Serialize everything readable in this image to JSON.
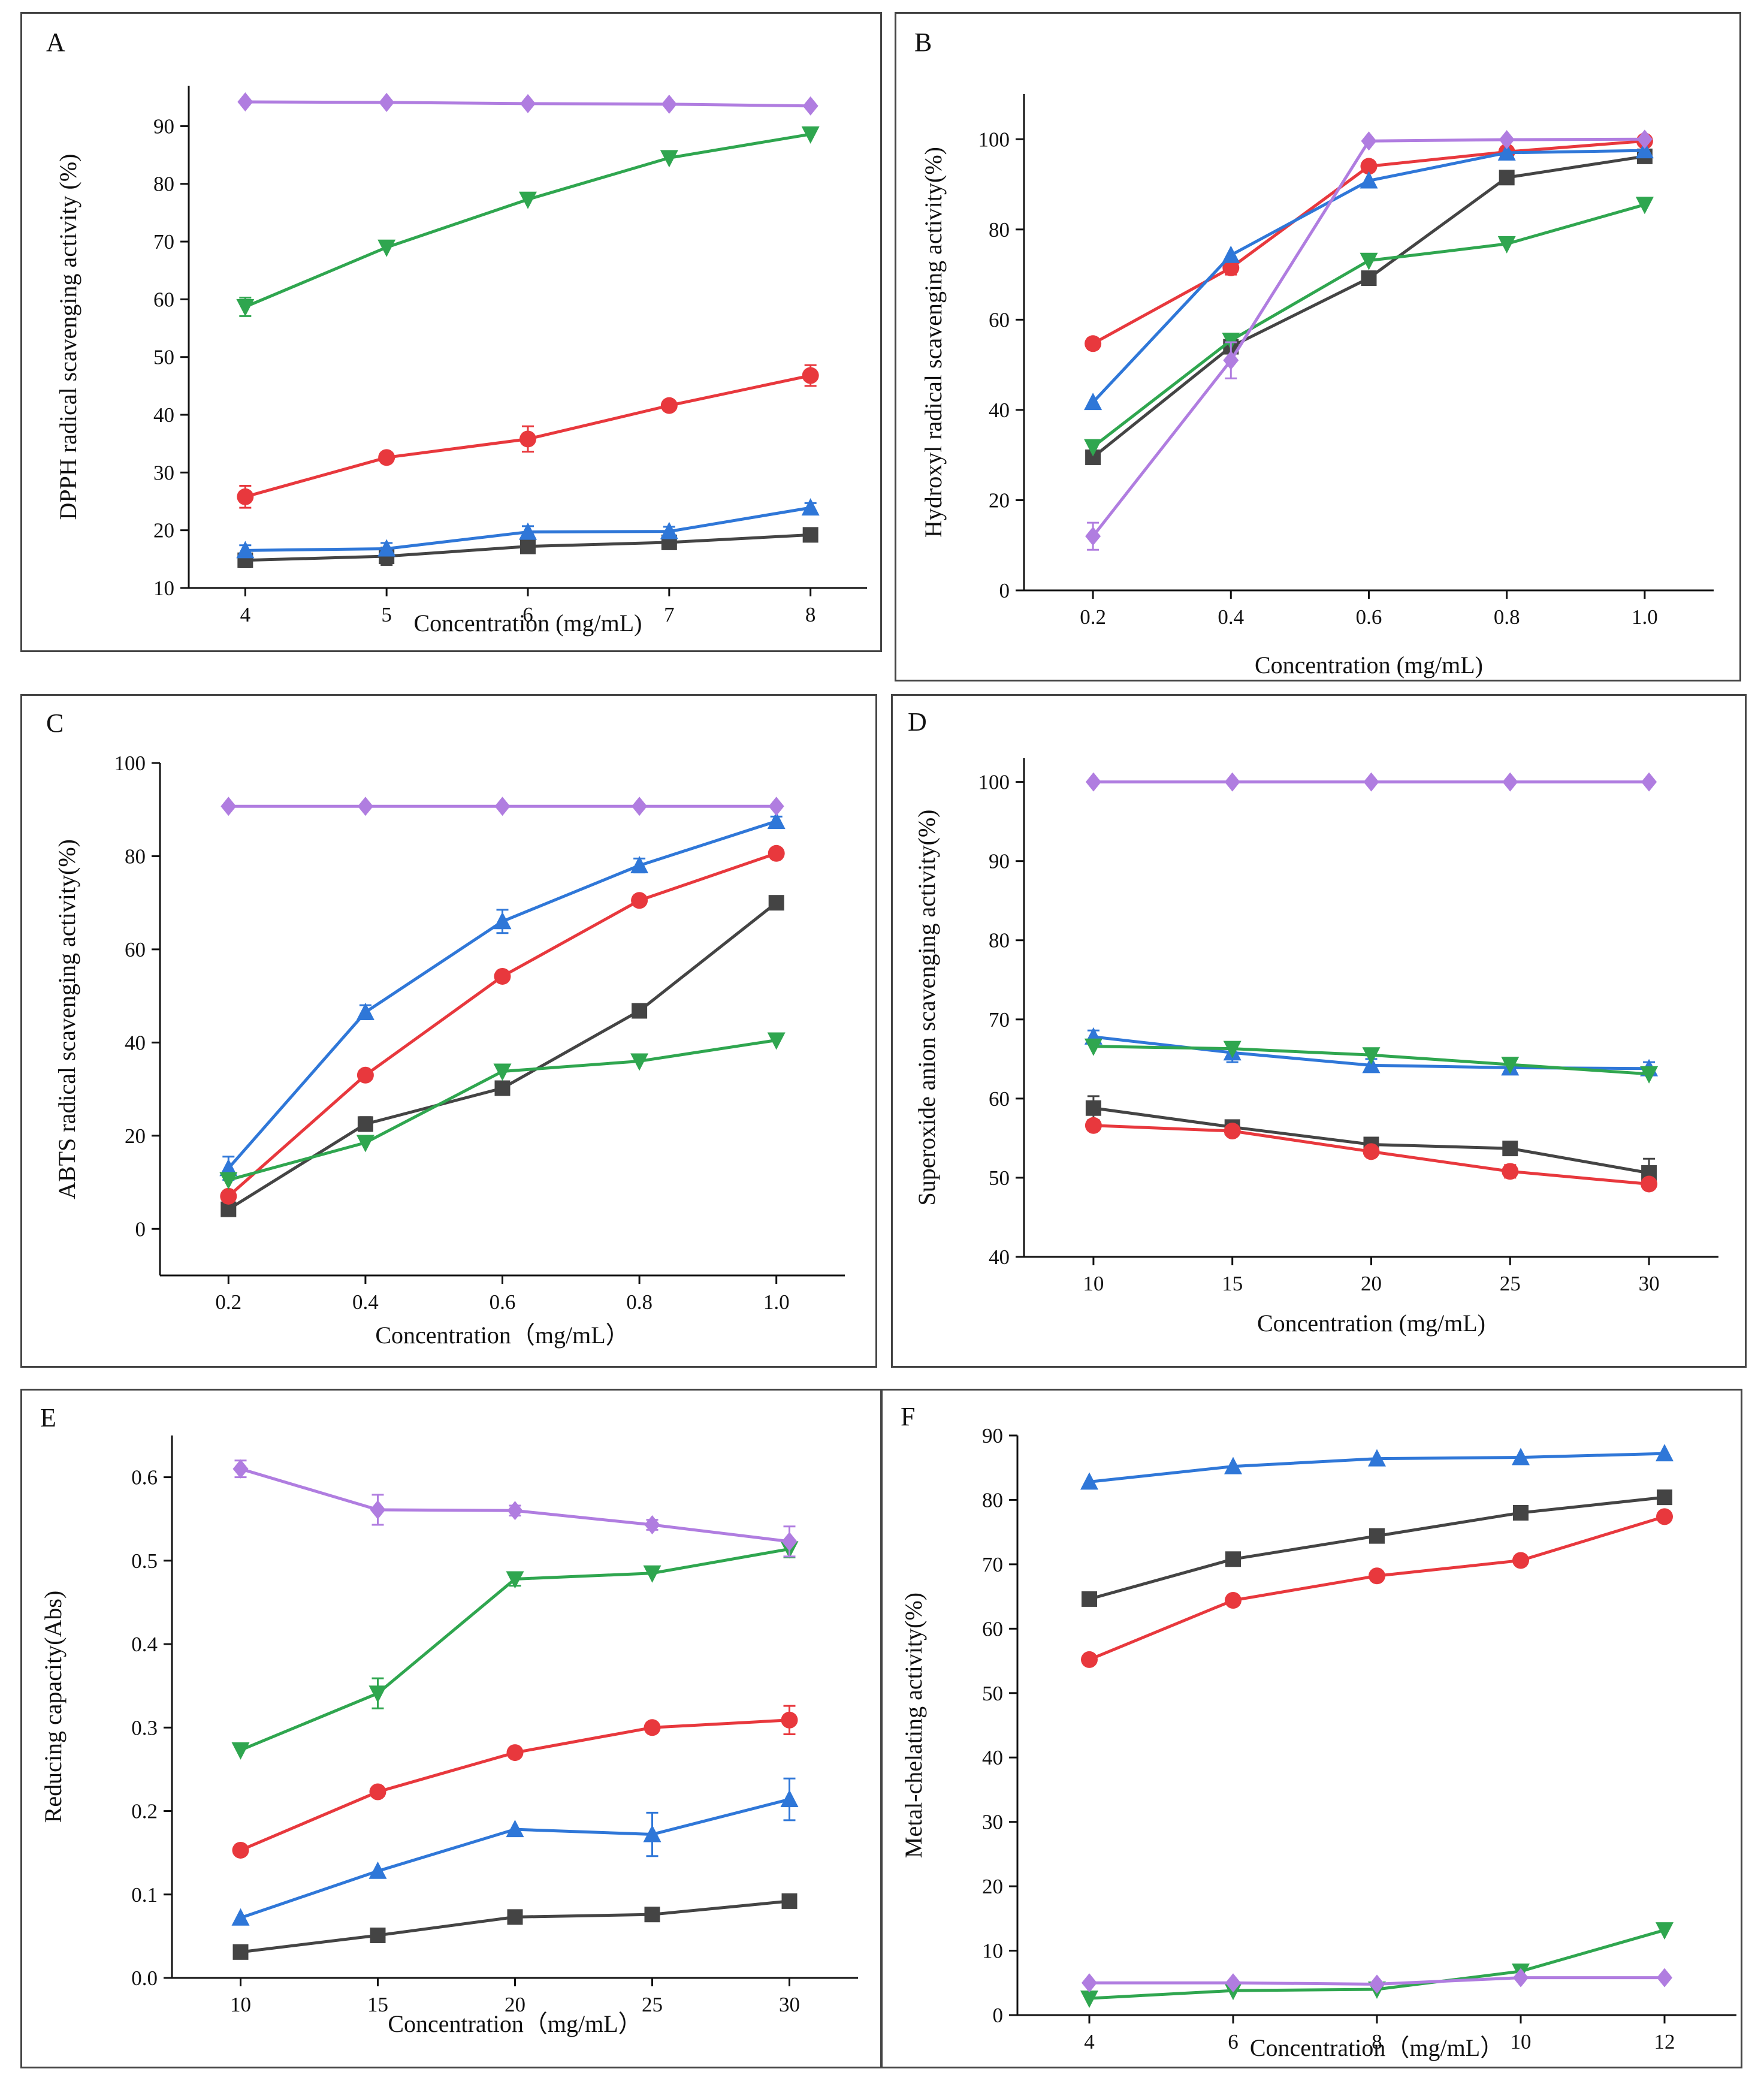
{
  "colors": {
    "s1": "#444444",
    "s2": "#e8383d",
    "s3": "#2f77d8",
    "s4": "#2fa64f",
    "s5": "#b07de0",
    "axis": "#111111",
    "border": "#444444"
  },
  "chart_data": [
    {
      "id": "A",
      "type": "line",
      "panel_label": "A",
      "title": "",
      "xlabel": "Concentration (mg/mL)",
      "ylabel": "DPPH radical scavenging activity (%)",
      "x": [
        4,
        5,
        6,
        7,
        8
      ],
      "x_ticks": [
        "4",
        "5",
        "6",
        "7",
        "8"
      ],
      "xlim": [
        3.6,
        8.4
      ],
      "ylim": [
        10,
        97
      ],
      "y_ticks": [
        10,
        20,
        30,
        40,
        50,
        60,
        70,
        80,
        90
      ],
      "y_tick_labels": [
        "10",
        "20",
        "30",
        "40",
        "50",
        "60",
        "70",
        "80",
        "90"
      ],
      "series": [
        {
          "name": "series-1",
          "marker": "square",
          "values": [
            14.8,
            15.5,
            17.2,
            17.9,
            19.2
          ]
        },
        {
          "name": "series-2",
          "marker": "circle",
          "values": [
            25.8,
            32.6,
            35.8,
            41.6,
            46.8
          ]
        },
        {
          "name": "series-3",
          "marker": "triangle-up",
          "values": [
            16.5,
            16.8,
            19.7,
            19.8,
            23.9
          ]
        },
        {
          "name": "series-4",
          "marker": "triangle-down",
          "values": [
            58.7,
            69.0,
            77.3,
            84.5,
            88.6
          ]
        },
        {
          "name": "series-5",
          "marker": "diamond",
          "values": [
            94.2,
            94.1,
            93.9,
            93.8,
            93.5
          ]
        }
      ]
    },
    {
      "id": "B",
      "type": "line",
      "panel_label": "B",
      "title": "",
      "xlabel": "Concentration (mg/mL)",
      "ylabel": "Hydroxyl radical scavenging activity(%)",
      "x": [
        0.2,
        0.4,
        0.6,
        0.8,
        1.0
      ],
      "x_ticks": [
        "0.2",
        "0.4",
        "0.6",
        "0.8",
        "1.0"
      ],
      "xlim": [
        0.1,
        1.1
      ],
      "ylim": [
        0,
        110
      ],
      "y_ticks": [
        0,
        20,
        40,
        60,
        80,
        100
      ],
      "y_tick_labels": [
        "0",
        "20",
        "40",
        "60",
        "80",
        "100"
      ],
      "series": [
        {
          "name": "series-1",
          "marker": "square",
          "values": [
            29.5,
            54.0,
            69.2,
            91.5,
            96.2
          ]
        },
        {
          "name": "series-2",
          "marker": "circle",
          "values": [
            54.7,
            71.5,
            94.0,
            97.2,
            99.6
          ]
        },
        {
          "name": "series-3",
          "marker": "triangle-up",
          "values": [
            41.7,
            74.3,
            90.8,
            97.0,
            97.5
          ]
        },
        {
          "name": "series-4",
          "marker": "triangle-down",
          "values": [
            31.8,
            55.4,
            73.1,
            76.8,
            85.5
          ]
        },
        {
          "name": "series-5",
          "marker": "diamond",
          "values": [
            12.0,
            51.0,
            99.6,
            99.9,
            100.0
          ]
        }
      ]
    },
    {
      "id": "C",
      "type": "line",
      "panel_label": "C",
      "title": "",
      "xlabel": "Concentration（mg/mL）",
      "ylabel": "ABTS radical scavenging activity(%)",
      "x": [
        0.2,
        0.4,
        0.6,
        0.8,
        1.0
      ],
      "x_ticks": [
        "0.2",
        "0.4",
        "0.6",
        "0.8",
        "1.0"
      ],
      "xlim": [
        0.1,
        1.1
      ],
      "ylim": [
        -10,
        100
      ],
      "y_ticks": [
        0,
        20,
        40,
        60,
        80,
        100
      ],
      "y_tick_labels": [
        "0",
        "20",
        "40",
        "60",
        "80",
        "100"
      ],
      "series": [
        {
          "name": "series-1",
          "marker": "square",
          "values": [
            4.2,
            22.5,
            30.2,
            46.8,
            70.0
          ]
        },
        {
          "name": "series-2",
          "marker": "circle",
          "values": [
            7.0,
            33.0,
            54.2,
            70.5,
            80.6
          ]
        },
        {
          "name": "series-3",
          "marker": "triangle-up",
          "values": [
            13.0,
            46.5,
            66.0,
            78.0,
            87.5
          ]
        },
        {
          "name": "series-4",
          "marker": "triangle-down",
          "values": [
            10.5,
            18.5,
            33.8,
            36.0,
            40.5
          ]
        },
        {
          "name": "series-5",
          "marker": "diamond",
          "values": [
            90.7,
            90.7,
            90.7,
            90.7,
            90.7
          ]
        }
      ]
    },
    {
      "id": "D",
      "type": "line",
      "panel_label": "D",
      "title": "",
      "xlabel": "Concentration (mg/mL)",
      "ylabel": "Superoxide anion  scavenging activity(%)",
      "x": [
        10,
        15,
        20,
        25,
        30
      ],
      "x_ticks": [
        "10",
        "15",
        "20",
        "25",
        "30"
      ],
      "xlim": [
        7.5,
        32.5
      ],
      "ylim": [
        40,
        103
      ],
      "y_ticks": [
        40,
        50,
        60,
        70,
        80,
        90,
        100
      ],
      "y_tick_labels": [
        "40",
        "50",
        "60",
        "70",
        "80",
        "90",
        "100"
      ],
      "series": [
        {
          "name": "series-1",
          "marker": "square",
          "values": [
            58.8,
            56.4,
            54.2,
            53.7,
            50.6
          ]
        },
        {
          "name": "series-2",
          "marker": "circle",
          "values": [
            56.6,
            55.9,
            53.3,
            50.8,
            49.2
          ]
        },
        {
          "name": "series-3",
          "marker": "triangle-up",
          "values": [
            67.8,
            65.8,
            64.2,
            63.9,
            63.8
          ]
        },
        {
          "name": "series-4",
          "marker": "triangle-down",
          "values": [
            66.6,
            66.3,
            65.5,
            64.3,
            63.1
          ]
        },
        {
          "name": "series-5",
          "marker": "diamond",
          "values": [
            100.0,
            100.0,
            100.0,
            100.0,
            100.0
          ]
        }
      ]
    },
    {
      "id": "E",
      "type": "line",
      "panel_label": "E",
      "title": "",
      "xlabel": "Concentration（mg/mL）",
      "ylabel": "Reducing capacity(Abs)",
      "x": [
        10,
        15,
        20,
        25,
        30
      ],
      "x_ticks": [
        "10",
        "15",
        "20",
        "25",
        "30"
      ],
      "xlim": [
        7.5,
        32.5
      ],
      "ylim": [
        0,
        0.65
      ],
      "y_ticks": [
        0,
        0.1,
        0.2,
        0.3,
        0.4,
        0.5,
        0.6
      ],
      "y_tick_labels": [
        "0.0",
        "0.1",
        "0.2",
        "0.3",
        "0.4",
        "0.5",
        "0.6"
      ],
      "series": [
        {
          "name": "series-1",
          "marker": "square",
          "values": [
            0.031,
            0.051,
            0.073,
            0.076,
            0.092
          ]
        },
        {
          "name": "series-2",
          "marker": "circle",
          "values": [
            0.153,
            0.223,
            0.27,
            0.3,
            0.309
          ]
        },
        {
          "name": "series-3",
          "marker": "triangle-up",
          "values": [
            0.072,
            0.128,
            0.178,
            0.172,
            0.214
          ]
        },
        {
          "name": "series-4",
          "marker": "triangle-down",
          "values": [
            0.273,
            0.341,
            0.478,
            0.485,
            0.514
          ]
        },
        {
          "name": "series-5",
          "marker": "diamond",
          "values": [
            0.61,
            0.561,
            0.56,
            0.543,
            0.523
          ]
        }
      ]
    },
    {
      "id": "F",
      "type": "line",
      "panel_label": "F",
      "title": "",
      "xlabel": "Concentration（mg/mL）",
      "ylabel": "Metal-chelating activity(%)",
      "x": [
        4,
        6,
        8,
        10,
        12
      ],
      "x_ticks": [
        "4",
        "6",
        "8",
        "10",
        "12"
      ],
      "xlim": [
        3.0,
        13.0
      ],
      "ylim": [
        0,
        90
      ],
      "y_ticks": [
        0,
        10,
        20,
        30,
        40,
        50,
        60,
        70,
        80,
        90
      ],
      "y_tick_labels": [
        "0",
        "10",
        "20",
        "30",
        "40",
        "50",
        "60",
        "70",
        "80",
        "90"
      ],
      "series": [
        {
          "name": "series-1",
          "marker": "square",
          "values": [
            64.6,
            70.8,
            74.4,
            78.0,
            80.4
          ]
        },
        {
          "name": "series-2",
          "marker": "circle",
          "values": [
            55.2,
            64.4,
            68.2,
            70.6,
            77.4
          ]
        },
        {
          "name": "series-3",
          "marker": "triangle-up",
          "values": [
            82.8,
            85.2,
            86.4,
            86.6,
            87.2
          ]
        },
        {
          "name": "series-4",
          "marker": "triangle-down",
          "values": [
            2.6,
            3.8,
            4.0,
            6.8,
            13.2
          ]
        },
        {
          "name": "series-5",
          "marker": "diamond",
          "values": [
            5.0,
            5.0,
            4.8,
            5.8,
            5.8
          ]
        }
      ]
    }
  ]
}
